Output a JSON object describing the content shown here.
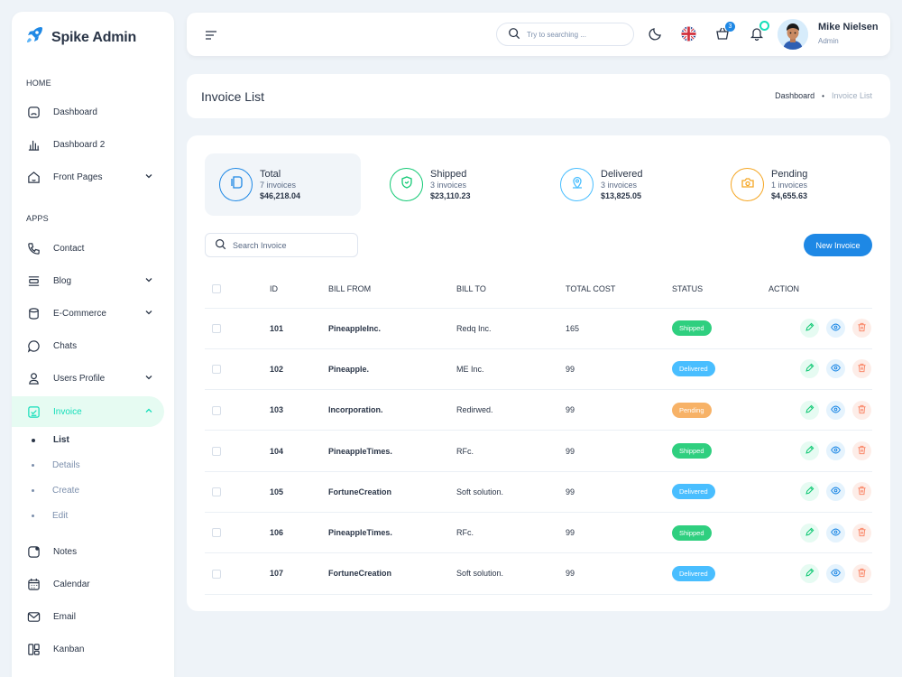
{
  "brand": {
    "name": "Spike Admin"
  },
  "sidebar": {
    "sections": [
      "HOME",
      "APPS"
    ],
    "items": [
      {
        "label": "Dashboard",
        "icon": "dashboard-icon"
      },
      {
        "label": "Dashboard 2",
        "icon": "chart-bars-icon"
      },
      {
        "label": "Front Pages",
        "icon": "home-icon"
      },
      {
        "label": "Contact",
        "icon": "phone-icon"
      },
      {
        "label": "Blog",
        "icon": "blog-icon"
      },
      {
        "label": "E-Commerce",
        "icon": "cylinder-icon"
      },
      {
        "label": "Chats",
        "icon": "chat-icon"
      },
      {
        "label": "Users Profile",
        "icon": "user-icon"
      },
      {
        "label": "Invoice",
        "icon": "invoice-icon"
      },
      {
        "label": "Notes",
        "icon": "notes-icon"
      },
      {
        "label": "Calendar",
        "icon": "calendar-icon"
      },
      {
        "label": "Email",
        "icon": "mail-icon"
      },
      {
        "label": "Kanban",
        "icon": "kanban-icon"
      }
    ],
    "invoice_sub": [
      "List",
      "Details",
      "Create",
      "Edit"
    ]
  },
  "header": {
    "search_placeholder": "Try to searching ...",
    "cart_count": "3",
    "user_name": "Mike Nielsen",
    "user_role": "Admin"
  },
  "page": {
    "title": "Invoice List",
    "breadcrumb_home": "Dashboard",
    "breadcrumb_sep": "•",
    "breadcrumb_current": "Invoice List"
  },
  "stats": [
    {
      "title": "Total",
      "count": "7 invoices",
      "amount": "$46,218.04",
      "color": "#1e88e5"
    },
    {
      "title": "Shipped",
      "count": "3 invoices",
      "amount": "$23,110.23",
      "color": "#13c975"
    },
    {
      "title": "Delivered",
      "count": "3 invoices",
      "amount": "$13,825.05",
      "color": "#49beff"
    },
    {
      "title": "Pending",
      "count": "1 invoices",
      "amount": "$4,655.63",
      "color": "#f5a623"
    }
  ],
  "invoice_search_placeholder": "Search Invoice",
  "new_invoice_label": "New Invoice",
  "table": {
    "headers": [
      "ID",
      "BILL FROM",
      "BILL TO",
      "TOTAL COST",
      "STATUS",
      "ACTION"
    ],
    "rows": [
      {
        "id": "101",
        "from": "PineappleInc.",
        "to": "Redq Inc.",
        "cost": "165",
        "status": "Shipped"
      },
      {
        "id": "102",
        "from": "Pineapple.",
        "to": "ME Inc.",
        "cost": "99",
        "status": "Delivered"
      },
      {
        "id": "103",
        "from": "Incorporation.",
        "to": "Redirwed.",
        "cost": "99",
        "status": "Pending"
      },
      {
        "id": "104",
        "from": "PineappleTimes.",
        "to": "RFc.",
        "cost": "99",
        "status": "Shipped"
      },
      {
        "id": "105",
        "from": "FortuneCreation",
        "to": "Soft solution.",
        "cost": "99",
        "status": "Delivered"
      },
      {
        "id": "106",
        "from": "PineappleTimes.",
        "to": "RFc.",
        "cost": "99",
        "status": "Shipped"
      },
      {
        "id": "107",
        "from": "FortuneCreation",
        "to": "Soft solution.",
        "cost": "99",
        "status": "Delivered"
      }
    ]
  },
  "status_colors": {
    "Shipped": "#2fcf7f",
    "Delivered": "#49beff",
    "Pending": "#f7b267"
  }
}
